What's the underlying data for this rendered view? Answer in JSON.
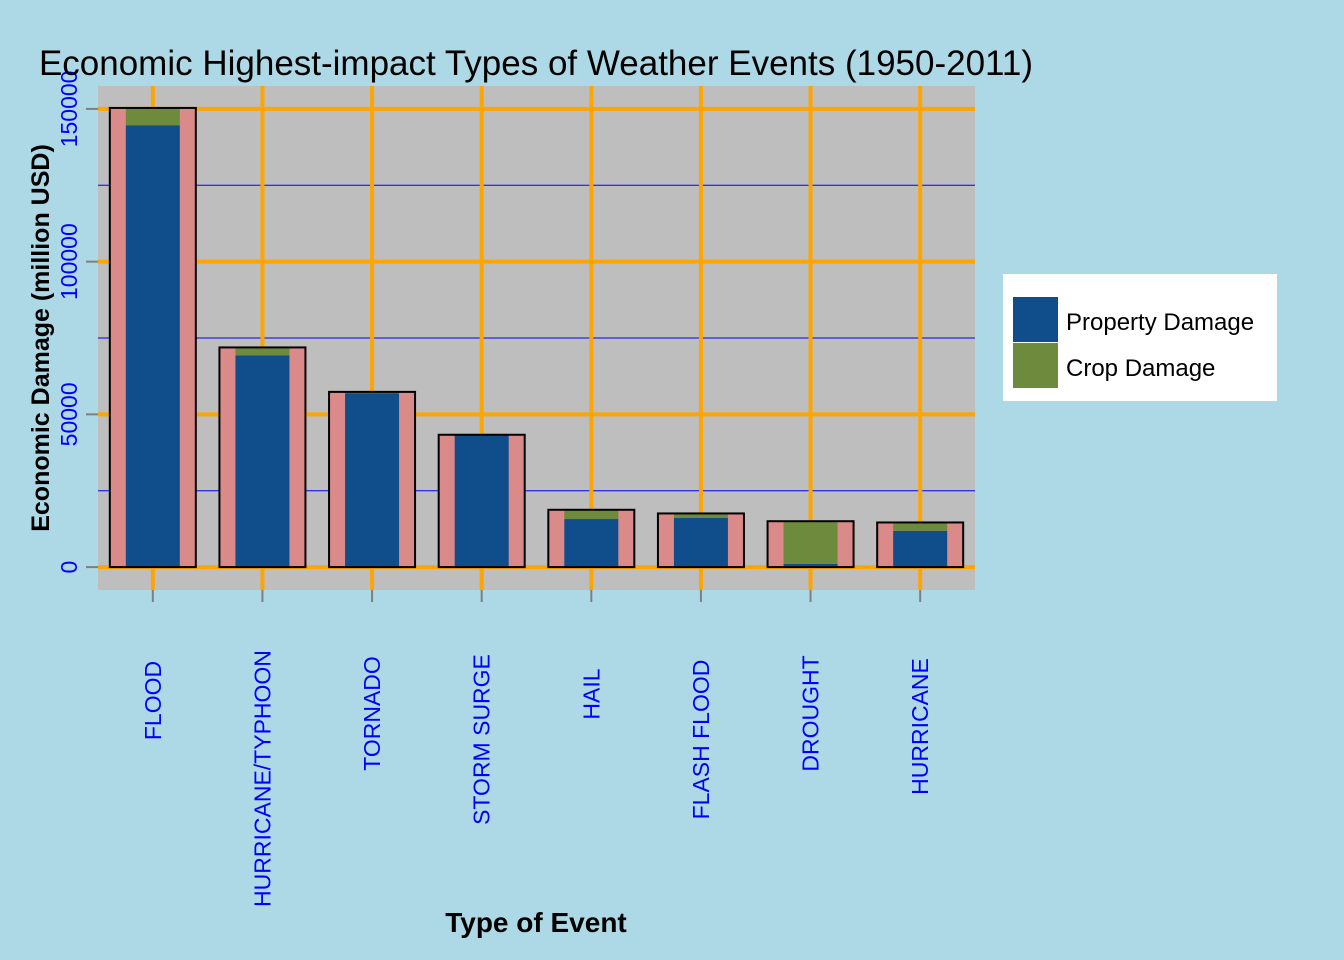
{
  "chart_data": {
    "type": "bar",
    "title": "Economic Highest-impact Types of Weather Events (1950-2011)",
    "xlabel": "Type of Event",
    "ylabel": "Economic Damage (million USD)",
    "categories": [
      "FLOOD",
      "HURRICANE/TYPHOON",
      "TORNADO",
      "STORM SURGE",
      "HAIL",
      "FLASH FLOOD",
      "DROUGHT",
      "HURRICANE"
    ],
    "totals": [
      150320,
      71914,
      57362,
      43324,
      18761,
      17562,
      15019,
      14610
    ],
    "series": [
      {
        "name": "Property Damage",
        "values": [
          144658,
          69306,
          56947,
          43324,
          15732,
          16141,
          1046,
          11868
        ]
      },
      {
        "name": "Crop Damage",
        "values": [
          5662,
          2608,
          415,
          0,
          3029,
          1421,
          13973,
          2742
        ]
      }
    ],
    "ylim": [
      -7500,
      157500
    ],
    "y_ticks": [
      0,
      50000,
      100000,
      150000
    ],
    "y_tick_labels": [
      "0",
      "50000",
      "100000",
      "150000"
    ],
    "grid": true,
    "legend_position": "right",
    "colors": {
      "background": "#ADD8E6",
      "panel": "#BEBEBE",
      "major_grid": "#FFA500",
      "minor_grid": "#0000FF",
      "total_bar": "#DB8A8A",
      "property": "#104E8B",
      "crop": "#6E8B3D",
      "tick_text": "#0000FF"
    }
  }
}
